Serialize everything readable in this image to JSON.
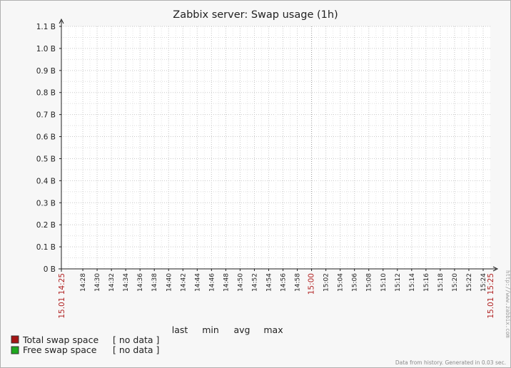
{
  "chart_data": {
    "type": "line",
    "title": "Zabbix server: Swap usage (1h)",
    "y_ticks": [
      "0 B",
      "0.1 B",
      "0.2 B",
      "0.3 B",
      "0.4 B",
      "0.5 B",
      "0.6 B",
      "0.7 B",
      "0.8 B",
      "0.9 B",
      "1.0 B",
      "1.1 B"
    ],
    "ylim": [
      0,
      1.1
    ],
    "y_unit": "B",
    "x_start_label": "15.01 14:25",
    "x_end_label": "15.01 15:25",
    "x_ticks": [
      "14:28",
      "14:30",
      "14:32",
      "14:34",
      "14:36",
      "14:38",
      "14:40",
      "14:42",
      "14:44",
      "14:46",
      "14:48",
      "14:50",
      "14:52",
      "14:54",
      "14:56",
      "14:58",
      "15:00",
      "15:02",
      "15:04",
      "15:06",
      "15:08",
      "15:10",
      "15:12",
      "15:14",
      "15:16",
      "15:18",
      "15:20",
      "15:22",
      "15:24"
    ],
    "x_highlight_tick": "15:00",
    "x_range": [
      "14:25",
      "15:25"
    ],
    "grid": true,
    "series": [
      {
        "name": "Total swap space",
        "color": "#a51515",
        "values": []
      },
      {
        "name": "Free swap space",
        "color": "#1ea81e",
        "values": []
      }
    ]
  },
  "legend": {
    "columns": [
      "last",
      "min",
      "avg",
      "max"
    ],
    "items": [
      {
        "label": "Total swap space",
        "value": "[ no data ]",
        "color": "#a51515"
      },
      {
        "label": "Free swap space",
        "value": "[ no data ]",
        "color": "#1ea81e"
      }
    ]
  },
  "watermark": "http://www.zabbix.com",
  "footer": "Data from history. Generated in 0.03 sec."
}
